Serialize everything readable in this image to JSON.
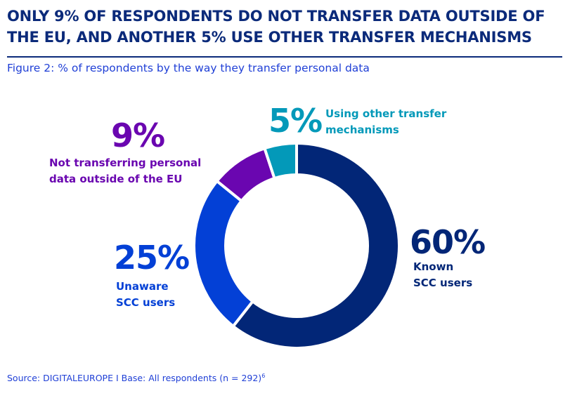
{
  "header": {
    "title_line1": "ONLY 9% OF RESPONDENTS DO NOT TRANSFER DATA OUTSIDE OF",
    "title_line2": "THE EU, AND ANOTHER 5% USE OTHER TRANSFER MECHANISMS",
    "subtitle": "Figure 2: % of respondents by the way they transfer personal data"
  },
  "footer": {
    "source": "Source: DIGITALEUROPE I Base: All respondents (n = 292)",
    "footnote_ref": "6"
  },
  "chart_data": {
    "type": "pie",
    "variant": "donut",
    "title": "Figure 2: % of respondents by the way they transfer personal data",
    "start": "top",
    "direction": "clockwise",
    "unit": "%",
    "slices": [
      {
        "key": "known",
        "label_pct": "60%",
        "label_line1": "Known",
        "label_line2": "SCC users",
        "value": 60,
        "color": "#022677"
      },
      {
        "key": "unaware",
        "label_pct": "25%",
        "label_line1": "Unaware",
        "label_line2": "SCC users",
        "value": 25,
        "color": "#0340d6"
      },
      {
        "key": "not",
        "label_pct": "9%",
        "label_line1": "Not transferring personal",
        "label_line2": "data outside of the EU",
        "value": 9,
        "color": "#6a06b0"
      },
      {
        "key": "other",
        "label_pct": "5%",
        "label_line1": "Using other transfer",
        "label_line2": "mechanisms",
        "value": 5,
        "color": "#0399b9"
      }
    ]
  }
}
